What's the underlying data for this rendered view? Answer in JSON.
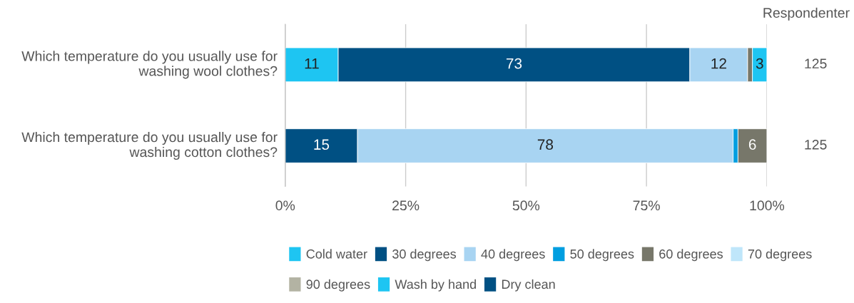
{
  "chart_data": {
    "type": "bar",
    "orientation": "horizontal",
    "stacked": true,
    "categories": [
      "Which temperature do you usually use for washing wool clothes?",
      "Which temperature do you usually use for washing cotton clothes?"
    ],
    "series": [
      {
        "name": "Cold water",
        "color": "#1ec5f2",
        "values": [
          11,
          null
        ],
        "value_labels": [
          "11",
          null
        ]
      },
      {
        "name": "30 degrees",
        "color": "#005083",
        "values": [
          73,
          15
        ],
        "value_labels": [
          "73",
          "15"
        ]
      },
      {
        "name": "40 degrees",
        "color": "#a8d4f2",
        "values": [
          12,
          78
        ],
        "value_labels": [
          "12",
          "78"
        ]
      },
      {
        "name": "50 degrees",
        "color": "#009ee0",
        "values": [
          null,
          1
        ],
        "value_labels": [
          null,
          null
        ]
      },
      {
        "name": "60 degrees",
        "color": "#77776a",
        "values": [
          1,
          6
        ],
        "value_labels": [
          null,
          "6"
        ]
      },
      {
        "name": "70 degrees",
        "color": "#bfe6fa",
        "values": [
          null,
          null
        ],
        "value_labels": [
          null,
          null
        ]
      },
      {
        "name": "90 degrees",
        "color": "#b3b3a3",
        "values": [
          null,
          null
        ],
        "value_labels": [
          null,
          null
        ]
      },
      {
        "name": "Wash by hand",
        "color": "#1ec5f2",
        "values": [
          3,
          null
        ],
        "value_labels": [
          "3",
          null
        ]
      },
      {
        "name": "Dry clean",
        "color": "#005083",
        "values": [
          null,
          null
        ],
        "value_labels": [
          null,
          null
        ]
      }
    ],
    "xlim": [
      0,
      100
    ],
    "xticks": [
      {
        "value": 0,
        "label": "0%"
      },
      {
        "value": 25,
        "label": "25%"
      },
      {
        "value": 50,
        "label": "50%"
      },
      {
        "value": 75,
        "label": "75%"
      },
      {
        "value": 100,
        "label": "100%"
      }
    ],
    "grid": "x",
    "legend": "bottom",
    "annotations": [
      "Respondenter",
      "125",
      "125"
    ]
  }
}
